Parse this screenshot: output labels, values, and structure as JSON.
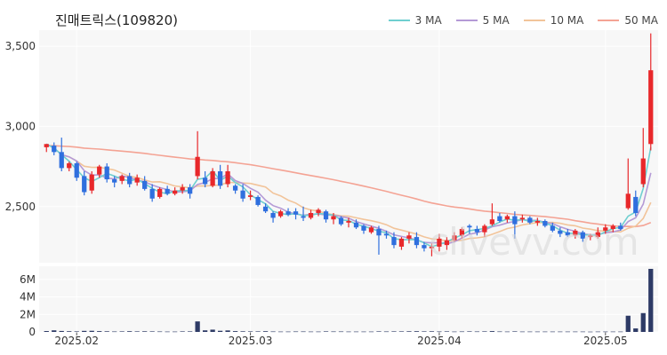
{
  "chart_data": [
    {
      "type": "candlestick",
      "title": "진매트릭스(109820)",
      "ylim": [
        2150,
        3600
      ],
      "yticks": [
        2500,
        3000,
        3500
      ],
      "ytick_labels": [
        "2,500",
        "3,000",
        "3,500"
      ],
      "xticks": [
        "2025.02",
        "2025.03",
        "2025.04",
        "2025.05"
      ],
      "grid": true,
      "legend_position": "top-right",
      "colors": {
        "up": "#e8282b",
        "down": "#2f6fde",
        "ma3": "#6fcfd0",
        "ma5": "#b49ad6",
        "ma10": "#f2c49a",
        "ma50": "#f4a394"
      },
      "ma_series": [
        {
          "name": "3 MA",
          "color": "#6fcfd0"
        },
        {
          "name": "5 MA",
          "color": "#b49ad6"
        },
        {
          "name": "10 MA",
          "color": "#f2c49a"
        },
        {
          "name": "50 MA",
          "color": "#f4a394"
        }
      ],
      "ohlc": [
        [
          2870,
          2890,
          2840,
          2890
        ],
        [
          2880,
          2900,
          2820,
          2840
        ],
        [
          2840,
          2930,
          2720,
          2740
        ],
        [
          2740,
          2780,
          2720,
          2770
        ],
        [
          2770,
          2780,
          2660,
          2680
        ],
        [
          2690,
          2720,
          2570,
          2590
        ],
        [
          2600,
          2720,
          2580,
          2700
        ],
        [
          2700,
          2760,
          2680,
          2750
        ],
        [
          2750,
          2770,
          2650,
          2670
        ],
        [
          2670,
          2690,
          2620,
          2650
        ],
        [
          2660,
          2700,
          2640,
          2690
        ],
        [
          2690,
          2710,
          2620,
          2640
        ],
        [
          2650,
          2700,
          2630,
          2680
        ],
        [
          2660,
          2690,
          2600,
          2610
        ],
        [
          2610,
          2640,
          2530,
          2550
        ],
        [
          2560,
          2620,
          2550,
          2610
        ],
        [
          2610,
          2630,
          2570,
          2580
        ],
        [
          2580,
          2620,
          2570,
          2600
        ],
        [
          2600,
          2640,
          2580,
          2620
        ],
        [
          2620,
          2640,
          2550,
          2580
        ],
        [
          2690,
          2970,
          2670,
          2810
        ],
        [
          2680,
          2720,
          2620,
          2640
        ],
        [
          2630,
          2740,
          2620,
          2720
        ],
        [
          2720,
          2760,
          2610,
          2630
        ],
        [
          2640,
          2760,
          2620,
          2720
        ],
        [
          2630,
          2640,
          2580,
          2600
        ],
        [
          2600,
          2640,
          2530,
          2550
        ],
        [
          2560,
          2600,
          2540,
          2570
        ],
        [
          2560,
          2570,
          2500,
          2510
        ],
        [
          2500,
          2520,
          2460,
          2470
        ],
        [
          2460,
          2470,
          2400,
          2430
        ],
        [
          2440,
          2480,
          2430,
          2470
        ],
        [
          2470,
          2490,
          2440,
          2450
        ],
        [
          2470,
          2490,
          2420,
          2450
        ],
        [
          2440,
          2500,
          2410,
          2430
        ],
        [
          2430,
          2480,
          2420,
          2460
        ],
        [
          2460,
          2490,
          2440,
          2480
        ],
        [
          2470,
          2480,
          2400,
          2420
        ],
        [
          2420,
          2460,
          2390,
          2440
        ],
        [
          2430,
          2440,
          2380,
          2390
        ],
        [
          2400,
          2430,
          2370,
          2410
        ],
        [
          2400,
          2420,
          2360,
          2370
        ],
        [
          2380,
          2390,
          2330,
          2350
        ],
        [
          2340,
          2380,
          2330,
          2370
        ],
        [
          2360,
          2380,
          2200,
          2320
        ],
        [
          2330,
          2350,
          2300,
          2320
        ],
        [
          2310,
          2340,
          2240,
          2260
        ],
        [
          2250,
          2310,
          2230,
          2300
        ],
        [
          2300,
          2340,
          2270,
          2320
        ],
        [
          2310,
          2340,
          2240,
          2260
        ],
        [
          2260,
          2280,
          2220,
          2240
        ],
        [
          2240,
          2270,
          2190,
          2250
        ],
        [
          2250,
          2330,
          2220,
          2300
        ],
        [
          2260,
          2310,
          2230,
          2290
        ],
        [
          2290,
          2340,
          2280,
          2320
        ],
        [
          2320,
          2370,
          2300,
          2360
        ],
        [
          2380,
          2390,
          2330,
          2370
        ],
        [
          2360,
          2380,
          2320,
          2340
        ],
        [
          2340,
          2390,
          2310,
          2380
        ],
        [
          2390,
          2520,
          2380,
          2420
        ],
        [
          2440,
          2460,
          2400,
          2410
        ],
        [
          2420,
          2450,
          2400,
          2440
        ],
        [
          2440,
          2470,
          2300,
          2390
        ],
        [
          2420,
          2450,
          2400,
          2430
        ],
        [
          2430,
          2440,
          2390,
          2400
        ],
        [
          2400,
          2430,
          2380,
          2410
        ],
        [
          2410,
          2420,
          2370,
          2380
        ],
        [
          2380,
          2400,
          2340,
          2350
        ],
        [
          2350,
          2370,
          2310,
          2330
        ],
        [
          2340,
          2360,
          2310,
          2320
        ],
        [
          2320,
          2360,
          2300,
          2350
        ],
        [
          2340,
          2350,
          2280,
          2300
        ],
        [
          2310,
          2330,
          2290,
          2320
        ],
        [
          2310,
          2370,
          2300,
          2340
        ],
        [
          2350,
          2390,
          2330,
          2370
        ],
        [
          2360,
          2390,
          2340,
          2380
        ],
        [
          2380,
          2400,
          2350,
          2360
        ],
        [
          2490,
          2800,
          2480,
          2580
        ],
        [
          2560,
          2600,
          2440,
          2460
        ],
        [
          2640,
          2990,
          2620,
          2800
        ],
        [
          2890,
          3580,
          2850,
          3350
        ]
      ],
      "volume_panel": {
        "ylim": [
          0,
          7500000
        ],
        "yticks": [
          0,
          2000000,
          4000000,
          6000000
        ],
        "ytick_labels": [
          "0",
          "2M",
          "4M",
          "6M"
        ],
        "color": "#2e3b66",
        "volumes": [
          100000,
          180000,
          110000,
          80000,
          60000,
          120000,
          130000,
          90000,
          70000,
          50000,
          60000,
          80000,
          60000,
          70000,
          60000,
          50000,
          40000,
          40000,
          60000,
          60000,
          1200000,
          180000,
          260000,
          130000,
          170000,
          90000,
          70000,
          60000,
          60000,
          80000,
          50000,
          40000,
          40000,
          50000,
          50000,
          40000,
          40000,
          60000,
          50000,
          50000,
          40000,
          40000,
          40000,
          40000,
          60000,
          50000,
          60000,
          60000,
          70000,
          80000,
          60000,
          70000,
          50000,
          60000,
          40000,
          50000,
          60000,
          50000,
          60000,
          90000,
          50000,
          40000,
          60000,
          40000,
          40000,
          40000,
          40000,
          40000,
          40000,
          40000,
          40000,
          40000,
          30000,
          40000,
          40000,
          40000,
          40000,
          1850000,
          400000,
          2150000,
          7200000
        ]
      }
    }
  ],
  "watermark": "clivevv.com"
}
